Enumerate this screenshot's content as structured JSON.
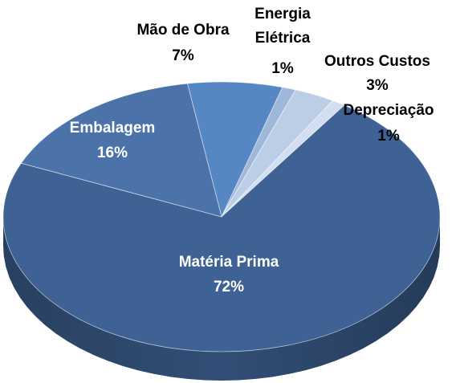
{
  "chart_data": {
    "type": "pie",
    "categories": [
      "Mão de Obra",
      "Energia Elétrica",
      "Outros Custos",
      "Depreciação",
      "Matéria Prima",
      "Embalagem"
    ],
    "values": [
      7,
      1,
      3,
      1,
      72,
      16
    ],
    "value_labels": [
      "7%",
      "1%",
      "3%",
      "1%",
      "72%",
      "16%"
    ],
    "colors": [
      "#5686c3",
      "#9fb7da",
      "#bccde6",
      "#d3def0",
      "#3e6294",
      "#4b73aa"
    ]
  }
}
